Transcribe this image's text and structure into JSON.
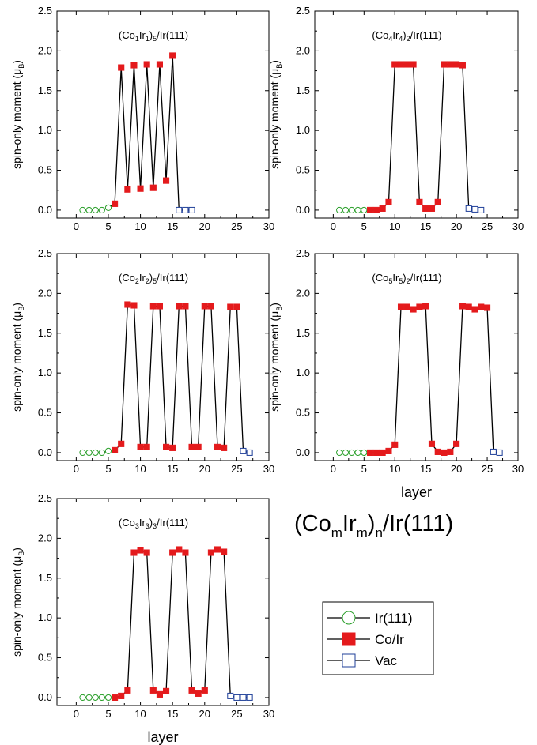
{
  "figure": {
    "main_title": {
      "base": "(Co",
      "sub1": "m",
      "mid": "Ir",
      "sub2": "m",
      "close": ")",
      "sub3": "n",
      "tail": "/Ir(111)"
    },
    "legend": [
      {
        "label": "Ir(111)",
        "color": "#2ca02c",
        "marker": "open-circle"
      },
      {
        "label": "Co/Ir",
        "color": "#e41a1c",
        "marker": "filled-square"
      },
      {
        "label": "Vac",
        "color": "#1f3f99",
        "marker": "open-square"
      }
    ]
  },
  "chart_data": [
    {
      "type": "line",
      "title": {
        "a": "(Co",
        "s1": "1",
        "b": "Ir",
        "s2": "1",
        "c": ")",
        "s3": "5",
        "d": "/Ir(111)"
      },
      "ylabel": {
        "text": "spin-only moment  (μ",
        "sub": "B",
        "close": ")"
      },
      "xlabel": "",
      "xlim": [
        -3,
        30
      ],
      "ylim": [
        -0.1,
        2.5
      ],
      "xticks": [
        "0",
        "5",
        "10",
        "15",
        "20",
        "25",
        "30"
      ],
      "yticks": [
        "0.0",
        "0.5",
        "1.0",
        "1.5",
        "2.0",
        "2.5"
      ],
      "series": [
        {
          "name": "Ir(111)",
          "x": [
            1,
            2,
            3,
            4,
            5
          ],
          "y": [
            0,
            0,
            0,
            0,
            0.03
          ]
        },
        {
          "name": "Co/Ir",
          "x": [
            6,
            7,
            8,
            9,
            10,
            11,
            12,
            13,
            14,
            15
          ],
          "y": [
            0.08,
            1.79,
            0.26,
            1.82,
            0.27,
            1.83,
            0.28,
            1.83,
            0.37,
            1.94
          ]
        },
        {
          "name": "Vac",
          "x": [
            16,
            17,
            18
          ],
          "y": [
            0,
            0,
            0
          ]
        }
      ]
    },
    {
      "type": "line",
      "title": {
        "a": "(Co",
        "s1": "4",
        "b": "Ir",
        "s2": "4",
        "c": ")",
        "s3": "2",
        "d": "/Ir(111)"
      },
      "ylabel": {
        "text": "spin-only moment  (μ",
        "sub": "B",
        "close": ")"
      },
      "xlabel": "",
      "xlim": [
        -3,
        30
      ],
      "ylim": [
        -0.1,
        2.5
      ],
      "xticks": [
        "0",
        "5",
        "10",
        "15",
        "20",
        "25",
        "30"
      ],
      "yticks": [
        "0.0",
        "0.5",
        "1.0",
        "1.5",
        "2.0",
        "2.5"
      ],
      "series": [
        {
          "name": "Ir(111)",
          "x": [
            1,
            2,
            3,
            4,
            5
          ],
          "y": [
            0,
            0,
            0,
            0,
            0
          ]
        },
        {
          "name": "Co/Ir",
          "x": [
            6,
            7,
            8,
            9,
            10,
            11,
            12,
            13,
            14,
            15,
            16,
            17,
            18,
            19,
            20,
            21
          ],
          "y": [
            0,
            0,
            0.02,
            0.1,
            1.83,
            1.83,
            1.83,
            1.83,
            0.1,
            0.02,
            0.02,
            0.1,
            1.83,
            1.83,
            1.83,
            1.82
          ]
        },
        {
          "name": "Vac",
          "x": [
            22,
            23,
            24
          ],
          "y": [
            0.02,
            0.01,
            0
          ]
        }
      ]
    },
    {
      "type": "line",
      "title": {
        "a": "(Co",
        "s1": "2",
        "b": "Ir",
        "s2": "2",
        "c": ")",
        "s3": "5",
        "d": "/Ir(111)"
      },
      "ylabel": {
        "text": "spin-only moment  (μ",
        "sub": "B",
        "close": ")"
      },
      "xlabel": "",
      "xlim": [
        -3,
        30
      ],
      "ylim": [
        -0.1,
        2.5
      ],
      "xticks": [
        "0",
        "5",
        "10",
        "15",
        "20",
        "25",
        "30"
      ],
      "yticks": [
        "0.0",
        "0.5",
        "1.0",
        "1.5",
        "2.0",
        "2.5"
      ],
      "series": [
        {
          "name": "Ir(111)",
          "x": [
            1,
            2,
            3,
            4,
            5
          ],
          "y": [
            0,
            0,
            0,
            0,
            0.02
          ]
        },
        {
          "name": "Co/Ir",
          "x": [
            6,
            7,
            8,
            9,
            10,
            11,
            12,
            13,
            14,
            15,
            16,
            17,
            18,
            19,
            20,
            21,
            22,
            23,
            24,
            25
          ],
          "y": [
            0.03,
            0.11,
            1.86,
            1.85,
            0.07,
            0.07,
            1.84,
            1.84,
            0.07,
            0.06,
            1.84,
            1.84,
            0.07,
            0.07,
            1.84,
            1.84,
            0.07,
            0.06,
            1.83,
            1.83
          ]
        },
        {
          "name": "Vac",
          "x": [
            26,
            27
          ],
          "y": [
            0.02,
            0
          ]
        }
      ]
    },
    {
      "type": "line",
      "title": {
        "a": "(Co",
        "s1": "5",
        "b": "Ir",
        "s2": "5",
        "c": ")",
        "s3": "2",
        "d": "/Ir(111)"
      },
      "ylabel": {
        "text": "spin-only moment  (μ",
        "sub": "B",
        "close": ")"
      },
      "xlabel": "layer",
      "xlim": [
        -3,
        30
      ],
      "ylim": [
        -0.1,
        2.5
      ],
      "xticks": [
        "0",
        "5",
        "10",
        "15",
        "20",
        "25",
        "30"
      ],
      "yticks": [
        "0.0",
        "0.5",
        "1.0",
        "1.5",
        "2.0",
        "2.5"
      ],
      "series": [
        {
          "name": "Ir(111)",
          "x": [
            1,
            2,
            3,
            4,
            5
          ],
          "y": [
            0,
            0,
            0,
            0,
            0
          ]
        },
        {
          "name": "Co/Ir",
          "x": [
            6,
            7,
            8,
            9,
            10,
            11,
            12,
            13,
            14,
            15,
            16,
            17,
            18,
            19,
            20,
            21,
            22,
            23,
            24,
            25
          ],
          "y": [
            0,
            0,
            0,
            0.02,
            0.1,
            1.83,
            1.83,
            1.8,
            1.83,
            1.84,
            0.11,
            0.01,
            0,
            0.01,
            0.11,
            1.84,
            1.83,
            1.8,
            1.83,
            1.82
          ]
        },
        {
          "name": "Vac",
          "x": [
            26,
            27
          ],
          "y": [
            0.01,
            0
          ]
        }
      ]
    },
    {
      "type": "line",
      "title": {
        "a": "(Co",
        "s1": "3",
        "b": "Ir",
        "s2": "3",
        "c": ")",
        "s3": "3",
        "d": "/Ir(111)"
      },
      "ylabel": {
        "text": "spin-only moment  (μ",
        "sub": "B",
        "close": ")"
      },
      "xlabel": "layer",
      "xlim": [
        -3,
        30
      ],
      "ylim": [
        -0.1,
        2.5
      ],
      "xticks": [
        "0",
        "5",
        "10",
        "15",
        "20",
        "25",
        "30"
      ],
      "yticks": [
        "0.0",
        "0.5",
        "1.0",
        "1.5",
        "2.0",
        "2.5"
      ],
      "series": [
        {
          "name": "Ir(111)",
          "x": [
            1,
            2,
            3,
            4,
            5
          ],
          "y": [
            0,
            0,
            0,
            0,
            0
          ]
        },
        {
          "name": "Co/Ir",
          "x": [
            6,
            7,
            8,
            9,
            10,
            11,
            12,
            13,
            14,
            15,
            16,
            17,
            18,
            19,
            20,
            21,
            22,
            23
          ],
          "y": [
            0,
            0.02,
            0.09,
            1.82,
            1.85,
            1.82,
            0.09,
            0.04,
            0.08,
            1.82,
            1.86,
            1.82,
            0.09,
            0.05,
            0.09,
            1.82,
            1.86,
            1.83
          ]
        },
        {
          "name": "Vac",
          "x": [
            24,
            25,
            26,
            27
          ],
          "y": [
            0.02,
            0,
            0,
            0
          ]
        }
      ]
    }
  ]
}
